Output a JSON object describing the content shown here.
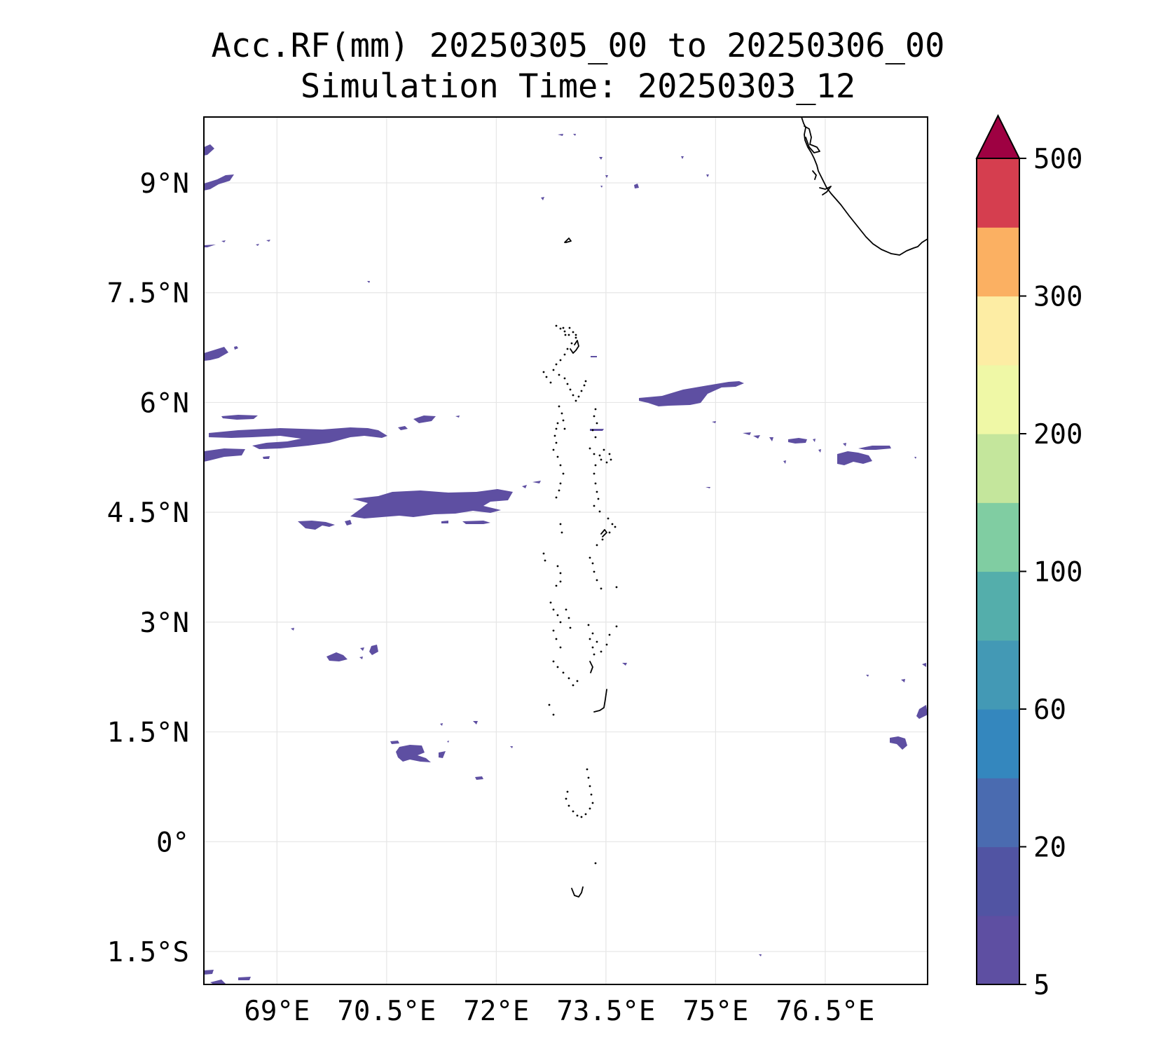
{
  "title": {
    "line1": "Acc.RF(mm) 20250305_00 to 20250306_00",
    "line2": "Simulation Time: 20250303_12"
  },
  "map": {
    "lon_range": [
      68.0,
      77.9
    ],
    "lat_range": [
      -1.95,
      9.9
    ],
    "x_ticks": [
      {
        "value": 69.0,
        "label": "69°E"
      },
      {
        "value": 70.5,
        "label": "70.5°E"
      },
      {
        "value": 72.0,
        "label": "72°E"
      },
      {
        "value": 73.5,
        "label": "73.5°E"
      },
      {
        "value": 75.0,
        "label": "75°E"
      },
      {
        "value": 76.5,
        "label": "76.5°E"
      }
    ],
    "y_ticks": [
      {
        "value": 9.0,
        "label": "9°N"
      },
      {
        "value": 7.5,
        "label": "7.5°N"
      },
      {
        "value": 6.0,
        "label": "6°N"
      },
      {
        "value": 4.5,
        "label": "4.5°N"
      },
      {
        "value": 3.0,
        "label": "3°N"
      },
      {
        "value": 1.5,
        "label": "1.5°N"
      },
      {
        "value": 0.0,
        "label": "0°"
      },
      {
        "value": -1.5,
        "label": "1.5°S"
      }
    ],
    "grid": true,
    "rain_color": "#5e4fa2"
  },
  "colorbar": {
    "levels": [
      5,
      10,
      20,
      40,
      60,
      80,
      100,
      150,
      200,
      250,
      300,
      400,
      500
    ],
    "colors": [
      "#5e4fa2",
      "#5154a3",
      "#4a6bb0",
      "#3487be",
      "#4399b5",
      "#54aeab",
      "#80cda2",
      "#c4e69c",
      "#eff8a6",
      "#fdeda4",
      "#fbb062",
      "#d53e4f"
    ],
    "extend_color": "#9e0142",
    "labels": [
      {
        "value": 5,
        "label": "5"
      },
      {
        "value": 20,
        "label": "20"
      },
      {
        "value": 60,
        "label": "60"
      },
      {
        "value": 100,
        "label": "100"
      },
      {
        "value": 200,
        "label": "200"
      },
      {
        "value": 300,
        "label": "300"
      },
      {
        "value": 500,
        "label": "500"
      }
    ]
  }
}
